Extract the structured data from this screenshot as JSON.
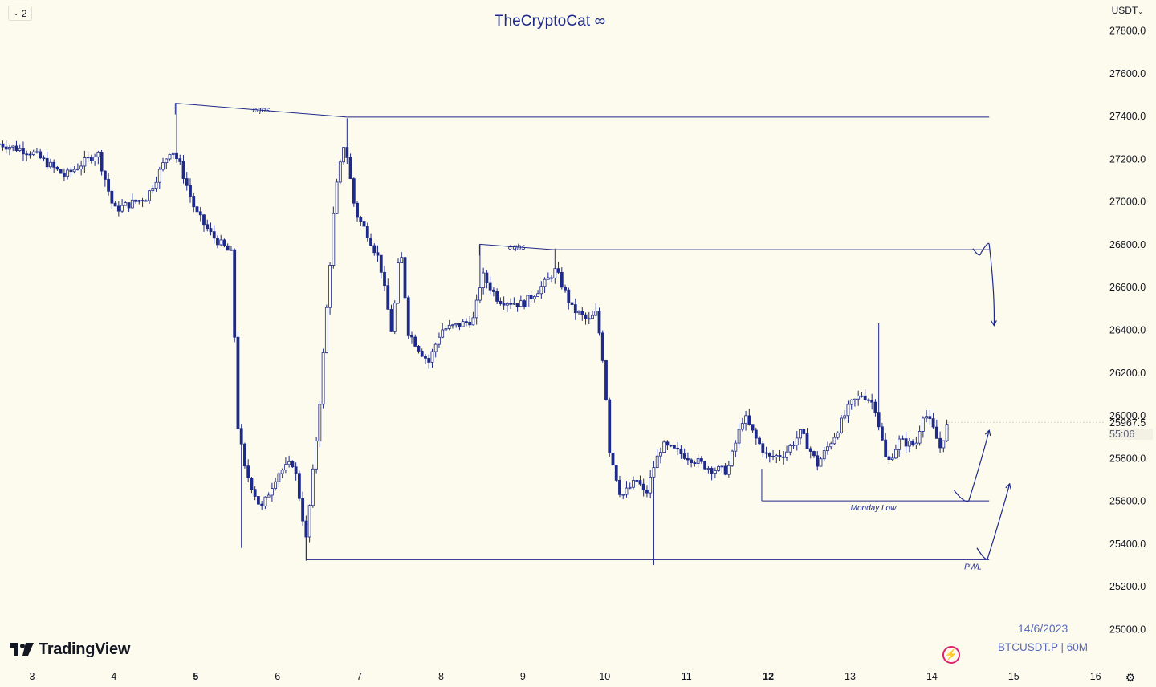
{
  "header": {
    "layout_button_label": "2",
    "watermark_text": "TheCryptoCat ∞",
    "currency_label": "USDT"
  },
  "footer": {
    "logo_text": "TradingView",
    "date_label": "14/6/2023",
    "symbol_label": "BTCUSDT.P | 60M"
  },
  "price_marker": {
    "price": "25967.5",
    "countdown": "55:06"
  },
  "colors": {
    "background": "#fdfaee",
    "ink": "#1e2a8a",
    "axis_text": "#131722",
    "accent": "#e0226e"
  },
  "icons": [
    "chevron-down-icon",
    "tradingview-logo-icon",
    "lightning-icon",
    "settings-gear-icon"
  ],
  "chart_data": {
    "type": "candlestick",
    "symbol": "BTCUSDT.P",
    "interval": "60M",
    "y_ticks": [
      "27800.0",
      "27600.0",
      "27400.0",
      "27200.0",
      "27000.0",
      "26800.0",
      "26600.0",
      "26400.0",
      "26200.0",
      "26000.0",
      "25800.0",
      "25600.0",
      "25400.0",
      "25200.0",
      "25000.0"
    ],
    "x_ticks": [
      {
        "label": "3",
        "day": 3,
        "bold": false
      },
      {
        "label": "4",
        "day": 4,
        "bold": false
      },
      {
        "label": "5",
        "day": 5,
        "bold": true
      },
      {
        "label": "6",
        "day": 6,
        "bold": false
      },
      {
        "label": "7",
        "day": 7,
        "bold": false
      },
      {
        "label": "8",
        "day": 8,
        "bold": false
      },
      {
        "label": "9",
        "day": 9,
        "bold": false
      },
      {
        "label": "10",
        "day": 10,
        "bold": false
      },
      {
        "label": "11",
        "day": 11,
        "bold": false
      },
      {
        "label": "12",
        "day": 12,
        "bold": true
      },
      {
        "label": "13",
        "day": 13,
        "bold": false
      },
      {
        "label": "14",
        "day": 14,
        "bold": false
      },
      {
        "label": "15",
        "day": 15,
        "bold": false
      },
      {
        "label": "16",
        "day": 16,
        "bold": false
      }
    ],
    "ylim": [
      25000,
      27800
    ],
    "price_path": [
      [
        2.6,
        27270
      ],
      [
        3.0,
        27230
      ],
      [
        3.4,
        27120
      ],
      [
        3.8,
        27230
      ],
      [
        4.0,
        26960
      ],
      [
        4.4,
        27020
      ],
      [
        4.7,
        27250
      ],
      [
        4.8,
        27180
      ],
      [
        5.0,
        26950
      ],
      [
        5.2,
        26840
      ],
      [
        5.45,
        26750
      ],
      [
        5.5,
        25990
      ],
      [
        5.6,
        25750
      ],
      [
        5.8,
        25560
      ],
      [
        6.0,
        25730
      ],
      [
        6.2,
        25780
      ],
      [
        6.35,
        25420
      ],
      [
        6.5,
        25980
      ],
      [
        6.6,
        26500
      ],
      [
        6.7,
        27020
      ],
      [
        6.82,
        27290
      ],
      [
        6.95,
        26950
      ],
      [
        7.1,
        26850
      ],
      [
        7.25,
        26720
      ],
      [
        7.4,
        26380
      ],
      [
        7.5,
        26800
      ],
      [
        7.6,
        26390
      ],
      [
        7.75,
        26300
      ],
      [
        7.85,
        26250
      ],
      [
        8.0,
        26400
      ],
      [
        8.2,
        26420
      ],
      [
        8.4,
        26450
      ],
      [
        8.5,
        26660
      ],
      [
        8.7,
        26540
      ],
      [
        9.0,
        26520
      ],
      [
        9.25,
        26610
      ],
      [
        9.4,
        26680
      ],
      [
        9.6,
        26500
      ],
      [
        9.8,
        26440
      ],
      [
        9.9,
        26480
      ],
      [
        10.0,
        26200
      ],
      [
        10.05,
        25850
      ],
      [
        10.2,
        25620
      ],
      [
        10.4,
        25700
      ],
      [
        10.5,
        25620
      ],
      [
        10.6,
        25760
      ],
      [
        10.7,
        25860
      ],
      [
        11.0,
        25810
      ],
      [
        11.3,
        25750
      ],
      [
        11.5,
        25740
      ],
      [
        11.7,
        26000
      ],
      [
        11.85,
        25890
      ],
      [
        12.0,
        25800
      ],
      [
        12.2,
        25820
      ],
      [
        12.4,
        25920
      ],
      [
        12.6,
        25770
      ],
      [
        12.8,
        25900
      ],
      [
        13.0,
        26050
      ],
      [
        13.15,
        26100
      ],
      [
        13.3,
        26050
      ],
      [
        13.45,
        25770
      ],
      [
        13.6,
        25880
      ],
      [
        13.8,
        25860
      ],
      [
        13.9,
        26020
      ],
      [
        14.0,
        25950
      ],
      [
        14.1,
        25850
      ],
      [
        14.2,
        25967
      ]
    ],
    "wick_extremes": [
      {
        "day": 4.76,
        "high": 27460
      },
      {
        "day": 5.55,
        "low": 25380
      },
      {
        "day": 6.35,
        "low": 25320
      },
      {
        "day": 6.83,
        "high": 27390
      },
      {
        "day": 8.47,
        "high": 26800
      },
      {
        "day": 9.38,
        "high": 26780
      },
      {
        "day": 10.58,
        "low": 25300
      },
      {
        "day": 13.33,
        "high": 26430
      }
    ],
    "annotations": {
      "eqhs_upper": {
        "text": "eqhs",
        "from": [
          4.75,
          27460
        ],
        "mid": [
          6.85,
          27395
        ],
        "to": [
          14.7,
          27395
        ]
      },
      "eqhs_lower": {
        "text": "eqhs",
        "from": [
          8.47,
          26800
        ],
        "mid": [
          9.38,
          26775
        ],
        "to": [
          14.7,
          26775
        ]
      },
      "monday_low": {
        "text": "Monday Low",
        "y": 25600,
        "from": 11.92,
        "to": 14.7
      },
      "pwl": {
        "text": "PWL",
        "y": 25325,
        "from": 6.35,
        "to": 14.7
      },
      "projection_1": [
        [
          14.5,
          26780
        ],
        [
          14.6,
          26760
        ],
        [
          14.7,
          26800
        ],
        [
          14.76,
          26420
        ]
      ],
      "projection_2": [
        [
          14.27,
          25650
        ],
        [
          14.45,
          25600
        ],
        [
          14.7,
          25930
        ]
      ],
      "projection_3": [
        [
          14.55,
          25380
        ],
        [
          14.68,
          25330
        ],
        [
          14.95,
          25680
        ]
      ]
    }
  }
}
